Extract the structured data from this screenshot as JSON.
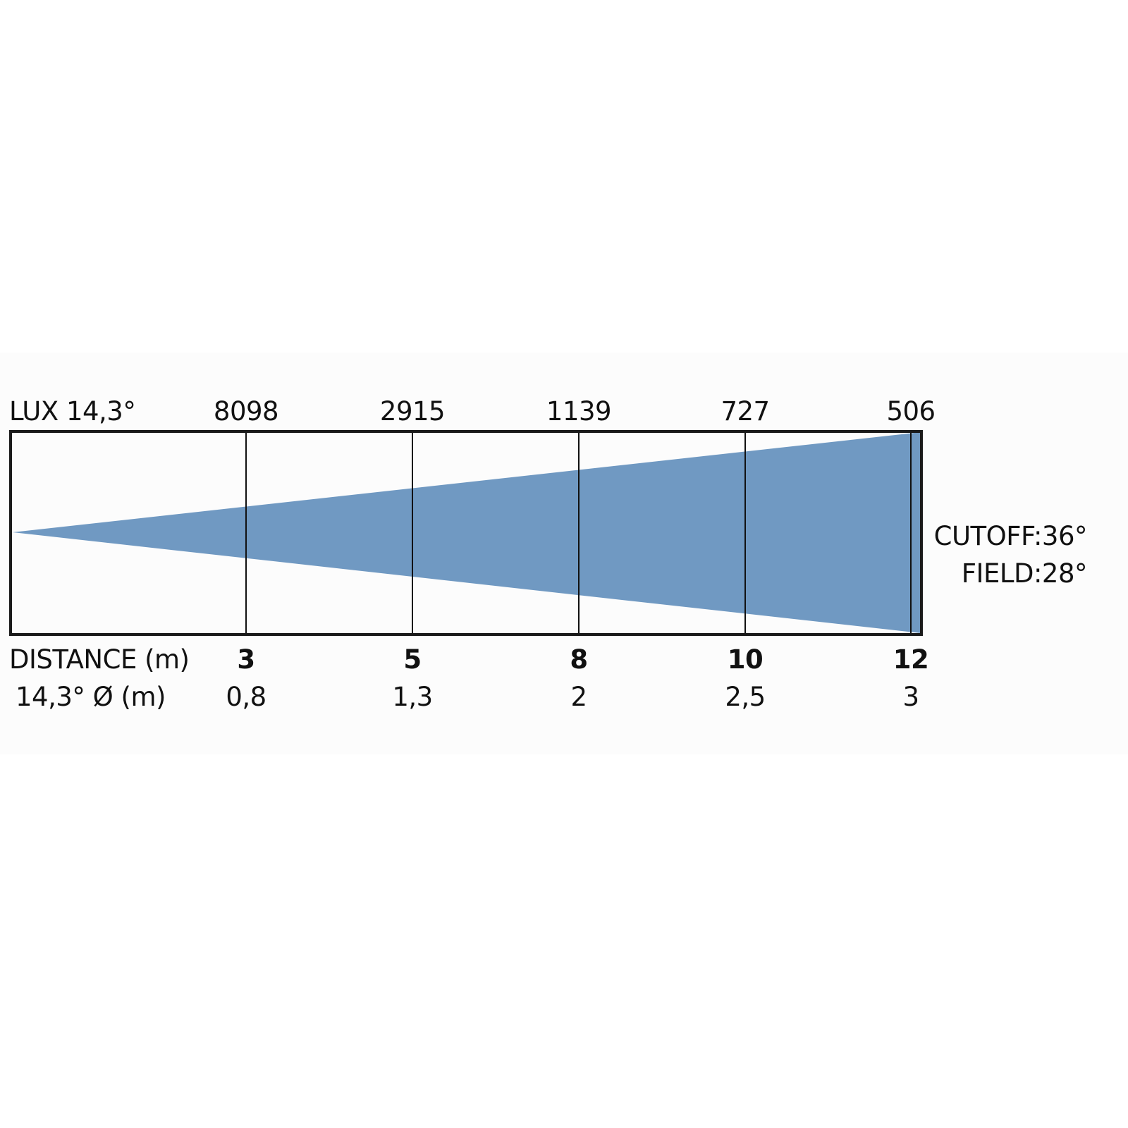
{
  "lux_header": "LUX  14,3°",
  "distance_header": "DISTANCE (m)",
  "diameter_header": "14,3° Ø (m)",
  "cutoff_label": "CUTOFF:36°",
  "field_label": "FIELD:28°",
  "beam_color": "#7099c2",
  "columns": [
    {
      "lux": "8098",
      "distance": "3",
      "diameter": "0,8"
    },
    {
      "lux": "2915",
      "distance": "5",
      "diameter": "1,3"
    },
    {
      "lux": "1139",
      "distance": "8",
      "diameter": "2"
    },
    {
      "lux": "727",
      "distance": "10",
      "diameter": "2,5"
    },
    {
      "lux": "506",
      "distance": "12",
      "diameter": "3"
    }
  ]
}
